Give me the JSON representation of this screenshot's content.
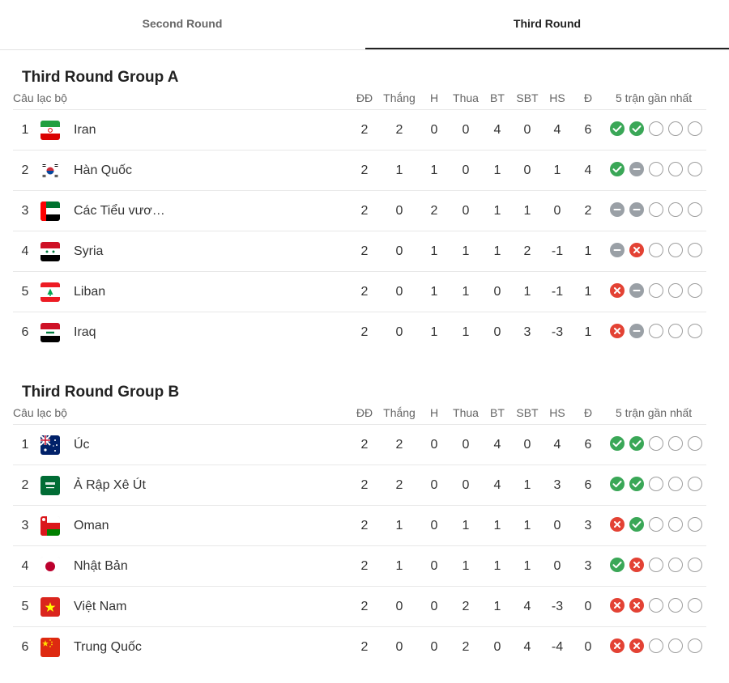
{
  "tabs": [
    {
      "label": "Second Round",
      "active": false
    },
    {
      "label": "Third Round",
      "active": true
    }
  ],
  "columns": {
    "club": "Câu lạc bộ",
    "played": "ĐĐ",
    "won": "Thắng",
    "drawn": "H",
    "lost": "Thua",
    "gf": "BT",
    "ga": "SBT",
    "gd": "HS",
    "pts": "Đ",
    "form": "5 trận gần nhất"
  },
  "groups": [
    {
      "title": "Third Round Group A",
      "teams": [
        {
          "pos": "1",
          "name": "Iran",
          "flag": "iran-flag-icon",
          "played": "2",
          "won": "2",
          "drawn": "0",
          "lost": "0",
          "gf": "4",
          "ga": "0",
          "gd": "4",
          "pts": "6",
          "form": [
            "win",
            "win",
            "empty",
            "empty",
            "empty"
          ]
        },
        {
          "pos": "2",
          "name": "Hàn Quốc",
          "flag": "south-korea-flag-icon",
          "played": "2",
          "won": "1",
          "drawn": "1",
          "lost": "0",
          "gf": "1",
          "ga": "0",
          "gd": "1",
          "pts": "4",
          "form": [
            "win",
            "draw",
            "empty",
            "empty",
            "empty"
          ]
        },
        {
          "pos": "3",
          "name": "Các Tiểu vươ…",
          "flag": "uae-flag-icon",
          "played": "2",
          "won": "0",
          "drawn": "2",
          "lost": "0",
          "gf": "1",
          "ga": "1",
          "gd": "0",
          "pts": "2",
          "form": [
            "draw",
            "draw",
            "empty",
            "empty",
            "empty"
          ]
        },
        {
          "pos": "4",
          "name": "Syria",
          "flag": "syria-flag-icon",
          "played": "2",
          "won": "0",
          "drawn": "1",
          "lost": "1",
          "gf": "1",
          "ga": "2",
          "gd": "-1",
          "pts": "1",
          "form": [
            "draw",
            "loss",
            "empty",
            "empty",
            "empty"
          ]
        },
        {
          "pos": "5",
          "name": "Liban",
          "flag": "lebanon-flag-icon",
          "played": "2",
          "won": "0",
          "drawn": "1",
          "lost": "1",
          "gf": "0",
          "ga": "1",
          "gd": "-1",
          "pts": "1",
          "form": [
            "loss",
            "draw",
            "empty",
            "empty",
            "empty"
          ]
        },
        {
          "pos": "6",
          "name": "Iraq",
          "flag": "iraq-flag-icon",
          "played": "2",
          "won": "0",
          "drawn": "1",
          "lost": "1",
          "gf": "0",
          "ga": "3",
          "gd": "-3",
          "pts": "1",
          "form": [
            "loss",
            "draw",
            "empty",
            "empty",
            "empty"
          ]
        }
      ]
    },
    {
      "title": "Third Round Group B",
      "teams": [
        {
          "pos": "1",
          "name": "Úc",
          "flag": "australia-flag-icon",
          "played": "2",
          "won": "2",
          "drawn": "0",
          "lost": "0",
          "gf": "4",
          "ga": "0",
          "gd": "4",
          "pts": "6",
          "form": [
            "win",
            "win",
            "empty",
            "empty",
            "empty"
          ]
        },
        {
          "pos": "2",
          "name": "Ả Rập Xê Út",
          "flag": "saudi-arabia-flag-icon",
          "played": "2",
          "won": "2",
          "drawn": "0",
          "lost": "0",
          "gf": "4",
          "ga": "1",
          "gd": "3",
          "pts": "6",
          "form": [
            "win",
            "win",
            "empty",
            "empty",
            "empty"
          ]
        },
        {
          "pos": "3",
          "name": "Oman",
          "flag": "oman-flag-icon",
          "played": "2",
          "won": "1",
          "drawn": "0",
          "lost": "1",
          "gf": "1",
          "ga": "1",
          "gd": "0",
          "pts": "3",
          "form": [
            "loss",
            "win",
            "empty",
            "empty",
            "empty"
          ]
        },
        {
          "pos": "4",
          "name": "Nhật Bản",
          "flag": "japan-flag-icon",
          "played": "2",
          "won": "1",
          "drawn": "0",
          "lost": "1",
          "gf": "1",
          "ga": "1",
          "gd": "0",
          "pts": "3",
          "form": [
            "win",
            "loss",
            "empty",
            "empty",
            "empty"
          ]
        },
        {
          "pos": "5",
          "name": "Việt Nam",
          "flag": "vietnam-flag-icon",
          "played": "2",
          "won": "0",
          "drawn": "0",
          "lost": "2",
          "gf": "1",
          "ga": "4",
          "gd": "-3",
          "pts": "0",
          "form": [
            "loss",
            "loss",
            "empty",
            "empty",
            "empty"
          ]
        },
        {
          "pos": "6",
          "name": "Trung Quốc",
          "flag": "china-flag-icon",
          "played": "2",
          "won": "0",
          "drawn": "0",
          "lost": "2",
          "gf": "0",
          "ga": "4",
          "gd": "-4",
          "pts": "0",
          "form": [
            "loss",
            "loss",
            "empty",
            "empty",
            "empty"
          ]
        }
      ]
    }
  ],
  "colors": {
    "win": "#3aa757",
    "draw": "#9aa0a6",
    "loss": "#e34234",
    "empty": "#9e9e9e"
  }
}
